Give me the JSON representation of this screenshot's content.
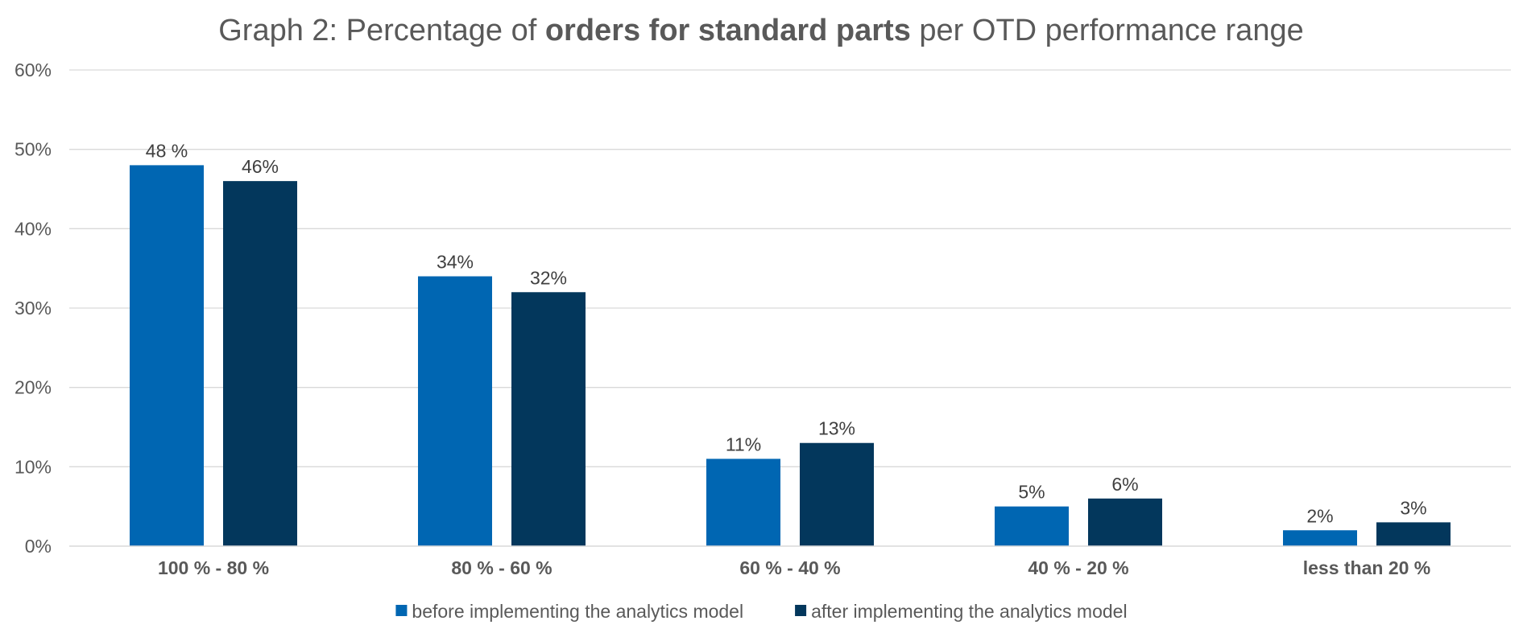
{
  "chart_data": {
    "type": "bar",
    "title_parts": [
      {
        "text": "Graph 2: Percentage of ",
        "bold": false
      },
      {
        "text": "orders for standard parts",
        "bold": true
      },
      {
        "text": " per OTD performance range",
        "bold": false
      }
    ],
    "categories": [
      "100 % - 80 %",
      "80 % - 60 %",
      "60 % - 40 %",
      "40 % - 20 %",
      "less than 20 %"
    ],
    "series": [
      {
        "name": "before implementing the analytics model",
        "color": "#0066B2",
        "values": [
          48,
          34,
          11,
          5,
          2
        ],
        "labels": [
          "48 %",
          "34%",
          "11%",
          "5%",
          "2%"
        ]
      },
      {
        "name": "after implementing the analytics model",
        "color": "#03375C",
        "values": [
          46,
          32,
          13,
          6,
          3
        ],
        "labels": [
          "46%",
          "32%",
          "13%",
          "6%",
          "3%"
        ]
      }
    ],
    "yticks": [
      "0%",
      "10%",
      "20%",
      "30%",
      "40%",
      "50%",
      "60%"
    ],
    "ylim": [
      0,
      60
    ],
    "grid": true,
    "legend_position": "bottom"
  }
}
